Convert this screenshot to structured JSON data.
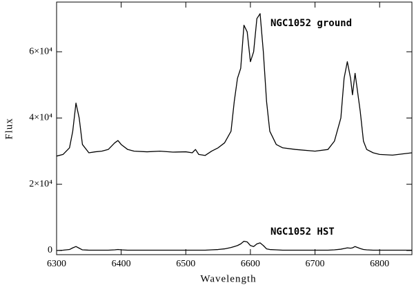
{
  "chart_data": {
    "type": "line",
    "xlabel": "Wavelength",
    "ylabel": "Flux",
    "annotations": [
      "NGC1052 ground",
      "NGC1052 HST"
    ],
    "x": [
      6300,
      6310,
      6320,
      6325,
      6330,
      6335,
      6340,
      6350,
      6360,
      6370,
      6380,
      6390,
      6395,
      6400,
      6410,
      6420,
      6440,
      6460,
      6480,
      6500,
      6510,
      6515,
      6520,
      6530,
      6540,
      6550,
      6560,
      6570,
      6575,
      6580,
      6585,
      6590,
      6595,
      6600,
      6605,
      6610,
      6615,
      6620,
      6625,
      6630,
      6640,
      6650,
      6670,
      6700,
      6720,
      6730,
      6740,
      6745,
      6750,
      6755,
      6758,
      6762,
      6770,
      6775,
      6780,
      6790,
      6800,
      6820,
      6850
    ],
    "series": [
      {
        "color": "#000000",
        "values": [
          28500,
          29000,
          31000,
          36000,
          44500,
          40000,
          32000,
          29500,
          29800,
          30000,
          30500,
          32500,
          33200,
          32000,
          30500,
          30000,
          29800,
          30000,
          29700,
          29800,
          29500,
          30500,
          29000,
          28700,
          30000,
          31000,
          32500,
          36000,
          45000,
          52000,
          55000,
          68000,
          66000,
          57000,
          60000,
          70000,
          71500,
          60000,
          45000,
          36000,
          32000,
          31000,
          30500,
          30000,
          30500,
          33000,
          40000,
          52000,
          57000,
          52000,
          47000,
          53500,
          42000,
          33000,
          30500,
          29500,
          29000,
          28800,
          29500
        ]
      },
      {
        "color": "#000000",
        "values": [
          0,
          100,
          300,
          800,
          1200,
          700,
          200,
          100,
          100,
          100,
          100,
          200,
          300,
          200,
          100,
          100,
          100,
          100,
          100,
          100,
          100,
          100,
          100,
          100,
          200,
          300,
          500,
          900,
          1200,
          1500,
          2000,
          2800,
          2600,
          1500,
          1200,
          2000,
          2300,
          1500,
          500,
          300,
          200,
          100,
          100,
          100,
          100,
          200,
          400,
          600,
          800,
          700,
          800,
          1200,
          600,
          300,
          200,
          100,
          100,
          100,
          100
        ]
      }
    ],
    "xlim": [
      6300,
      6850
    ],
    "xticks": [
      6300,
      6400,
      6500,
      6600,
      6700,
      6800
    ],
    "ylim": [
      -1250,
      75000
    ],
    "yticks": [
      0,
      {
        "value": 20000,
        "label": "2×10⁴"
      },
      {
        "value": 40000,
        "label": "4×10⁴"
      },
      {
        "value": 60000,
        "label": "6×10⁴"
      }
    ]
  }
}
